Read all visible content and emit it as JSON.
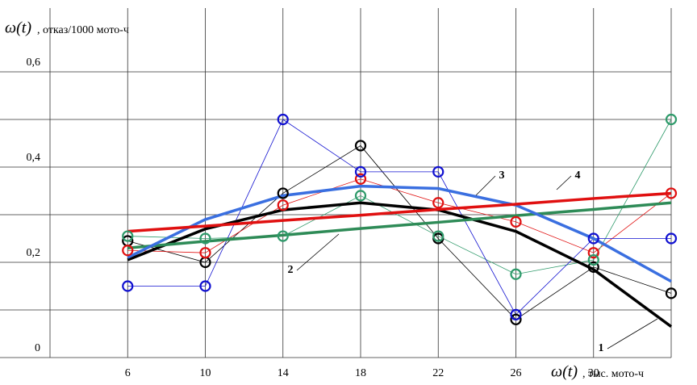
{
  "chart_data": {
    "type": "line",
    "y_label_symbol": "ω(t)",
    "y_label": ",  отказ/1000 мото-ч",
    "x_label_symbol": "ω(t)",
    "x_label": ", тыс. мото-ч",
    "x": [
      6,
      10,
      14,
      18,
      22,
      26,
      30,
      34
    ],
    "series": [
      {
        "color": "#000000",
        "values": [
          0.245,
          0.2,
          0.345,
          0.445,
          0.25,
          0.08,
          0.19,
          0.135
        ]
      },
      {
        "color": "#e01010",
        "values": [
          0.225,
          0.22,
          0.32,
          0.375,
          0.325,
          0.285,
          0.22,
          0.345
        ]
      },
      {
        "color": "#2e9a6a",
        "values": [
          0.255,
          0.25,
          0.255,
          0.34,
          0.255,
          0.175,
          0.205,
          0.5
        ]
      },
      {
        "color": "#1010d0",
        "values": [
          0.15,
          0.15,
          0.5,
          0.39,
          0.39,
          0.09,
          0.25,
          0.25
        ]
      }
    ],
    "fits": [
      {
        "color": "#000000",
        "values": [
          0.205,
          0.27,
          0.31,
          0.325,
          0.31,
          0.265,
          0.185,
          0.065
        ]
      },
      {
        "color": "#2e8b57",
        "values": [
          0.23,
          0.244,
          0.257,
          0.271,
          0.284,
          0.298,
          0.311,
          0.325
        ]
      },
      {
        "color": "#3a6fe0",
        "values": [
          0.21,
          0.29,
          0.34,
          0.36,
          0.355,
          0.32,
          0.25,
          0.16
        ]
      },
      {
        "color": "#e01010",
        "values": [
          0.265,
          0.276,
          0.288,
          0.299,
          0.311,
          0.322,
          0.334,
          0.345
        ]
      }
    ],
    "annotations": [
      "1",
      "2",
      "3",
      "4"
    ],
    "xlim": [
      2,
      34
    ],
    "ylim": [
      0,
      0.7
    ],
    "xticks": [
      6,
      10,
      14,
      18,
      22,
      26,
      30
    ],
    "yticks": [
      0,
      {
        "value": 0.2,
        "label": "0,2"
      },
      {
        "value": 0.4,
        "label": "0,4"
      },
      {
        "value": 0.6,
        "label": "0,6"
      }
    ],
    "ygrid": [
      0.1,
      0.3,
      0.5
    ],
    "grid": true
  }
}
